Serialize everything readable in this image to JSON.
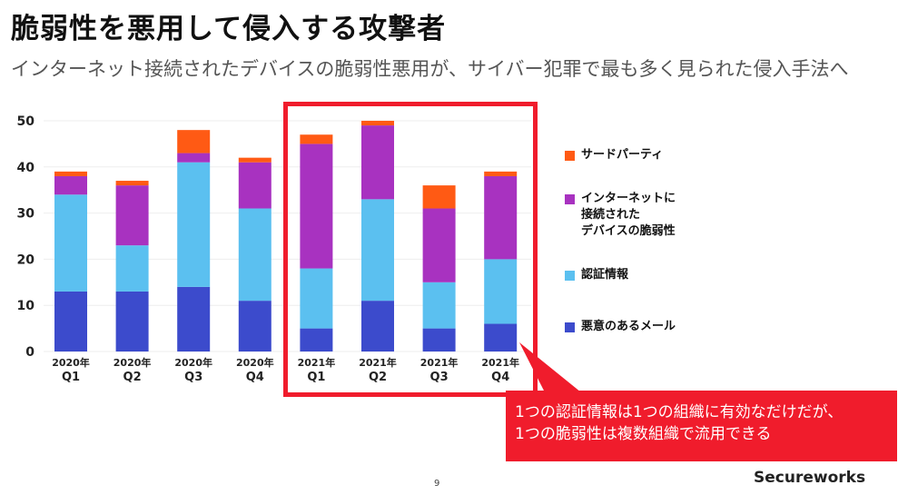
{
  "title": "脆弱性を悪用して侵入する攻撃者",
  "subtitle": "インターネット接続されたデバイスの脆弱性悪用が、サイバー犯罪で最も多く見られた侵入手法へ",
  "chart_data": {
    "type": "bar",
    "stacked": true,
    "categories": [
      "2020年 Q1",
      "2020年 Q2",
      "2020年 Q3",
      "2020年 Q4",
      "2021年 Q1",
      "2021年 Q2",
      "2021年 Q3",
      "2021年 Q4"
    ],
    "category_lines": [
      [
        "2020年",
        "Q1"
      ],
      [
        "2020年",
        "Q2"
      ],
      [
        "2020年",
        "Q3"
      ],
      [
        "2020年",
        "Q4"
      ],
      [
        "2021年",
        "Q1"
      ],
      [
        "2021年",
        "Q2"
      ],
      [
        "2021年",
        "Q3"
      ],
      [
        "2021年",
        "Q4"
      ]
    ],
    "series": [
      {
        "name": "悪意のあるメール",
        "color": "#3c4bcc",
        "values": [
          13,
          13,
          14,
          11,
          5,
          11,
          5,
          6
        ]
      },
      {
        "name": "認証情報",
        "color": "#5bc0f0",
        "values": [
          21,
          10,
          27,
          20,
          13,
          22,
          10,
          14
        ]
      },
      {
        "name": "インターネットに\n接続された\nデバイスの脆弱性",
        "color": "#a832c0",
        "values": [
          4,
          13,
          2,
          10,
          27,
          16,
          16,
          18
        ]
      },
      {
        "name": "サードパーティ",
        "color": "#ff5a14",
        "values": [
          1,
          1,
          5,
          1,
          2,
          1,
          5,
          1
        ]
      }
    ],
    "yticks": [
      0,
      10,
      20,
      30,
      40,
      50
    ],
    "ylim": [
      0,
      50
    ],
    "legend_position": "right",
    "annotation": "1つの認証情報は1つの組織に有効なだけだが、\n1つの脆弱性は複数組織で流用できる"
  },
  "page_number": "9",
  "logo": "Secureworks"
}
